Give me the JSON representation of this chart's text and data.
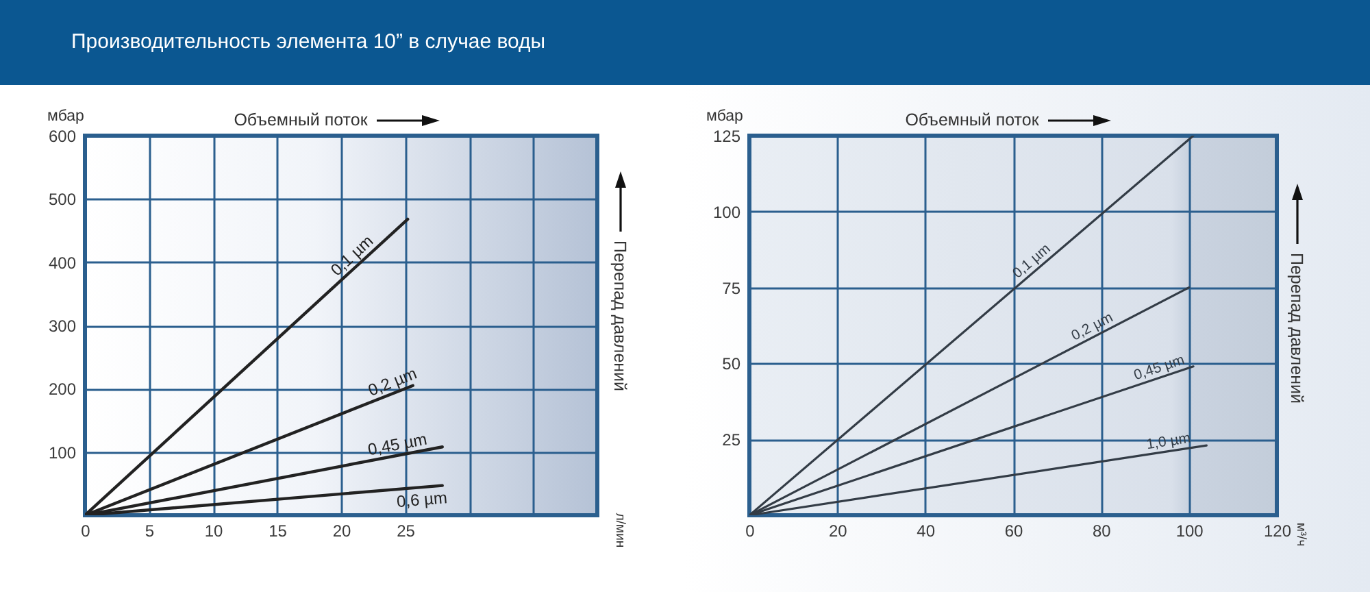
{
  "chart_data": [
    {
      "type": "line",
      "title": "Производительность элемента 10” в случае воды",
      "xlabel": "Объемный поток",
      "ylabel": "Перепад давлений",
      "annotations": [
        "мбар",
        "л/мин"
      ],
      "xlim": [
        0,
        40
      ],
      "xticks": [
        0,
        5,
        10,
        15,
        20,
        25,
        {
          "value": 30,
          "label": null
        },
        {
          "value": 35,
          "label": null
        }
      ],
      "ylim": [
        0,
        600
      ],
      "yticks": [
        {
          "value": 0,
          "label": null
        },
        100,
        200,
        300,
        400,
        500,
        600
      ],
      "grid": true,
      "series": [
        {
          "name": "0,1 µm",
          "color": "#222222",
          "x": [
            0,
            25.2
          ],
          "values": [
            0,
            468
          ]
        },
        {
          "name": "0,2 µm",
          "color": "#222222",
          "x": [
            0,
            25.6
          ],
          "values": [
            0,
            205
          ]
        },
        {
          "name": "0,45 µm",
          "color": "#222222",
          "x": [
            0,
            27.9
          ],
          "values": [
            0,
            108
          ]
        },
        {
          "name": "0,6 µm",
          "color": "#222222",
          "x": [
            0,
            27.9
          ],
          "values": [
            0,
            47
          ]
        }
      ]
    },
    {
      "type": "line",
      "xlabel": "Объемный поток",
      "ylabel": "Перепад давлений",
      "annotations": [
        "мбар",
        "м³/ч"
      ],
      "xlim": [
        0,
        120
      ],
      "xticks": [
        0,
        20,
        40,
        60,
        80,
        100,
        120
      ],
      "ylim": [
        0,
        125
      ],
      "yticks": [
        {
          "value": 0,
          "label": null
        },
        25,
        50,
        75,
        100,
        125
      ],
      "grid": true,
      "series": [
        {
          "name": "0,1 µm",
          "color": "#333c46",
          "x": [
            0,
            101
          ],
          "values": [
            0,
            125
          ]
        },
        {
          "name": "0,2 µm",
          "color": "#333c46",
          "x": [
            0,
            100
          ],
          "values": [
            0,
            75
          ]
        },
        {
          "name": "0,45 µm",
          "color": "#333c46",
          "x": [
            0,
            101
          ],
          "values": [
            0,
            49
          ]
        },
        {
          "name": "1,0 µm",
          "color": "#333c46",
          "x": [
            0,
            104
          ],
          "values": [
            0,
            23
          ]
        }
      ]
    }
  ]
}
